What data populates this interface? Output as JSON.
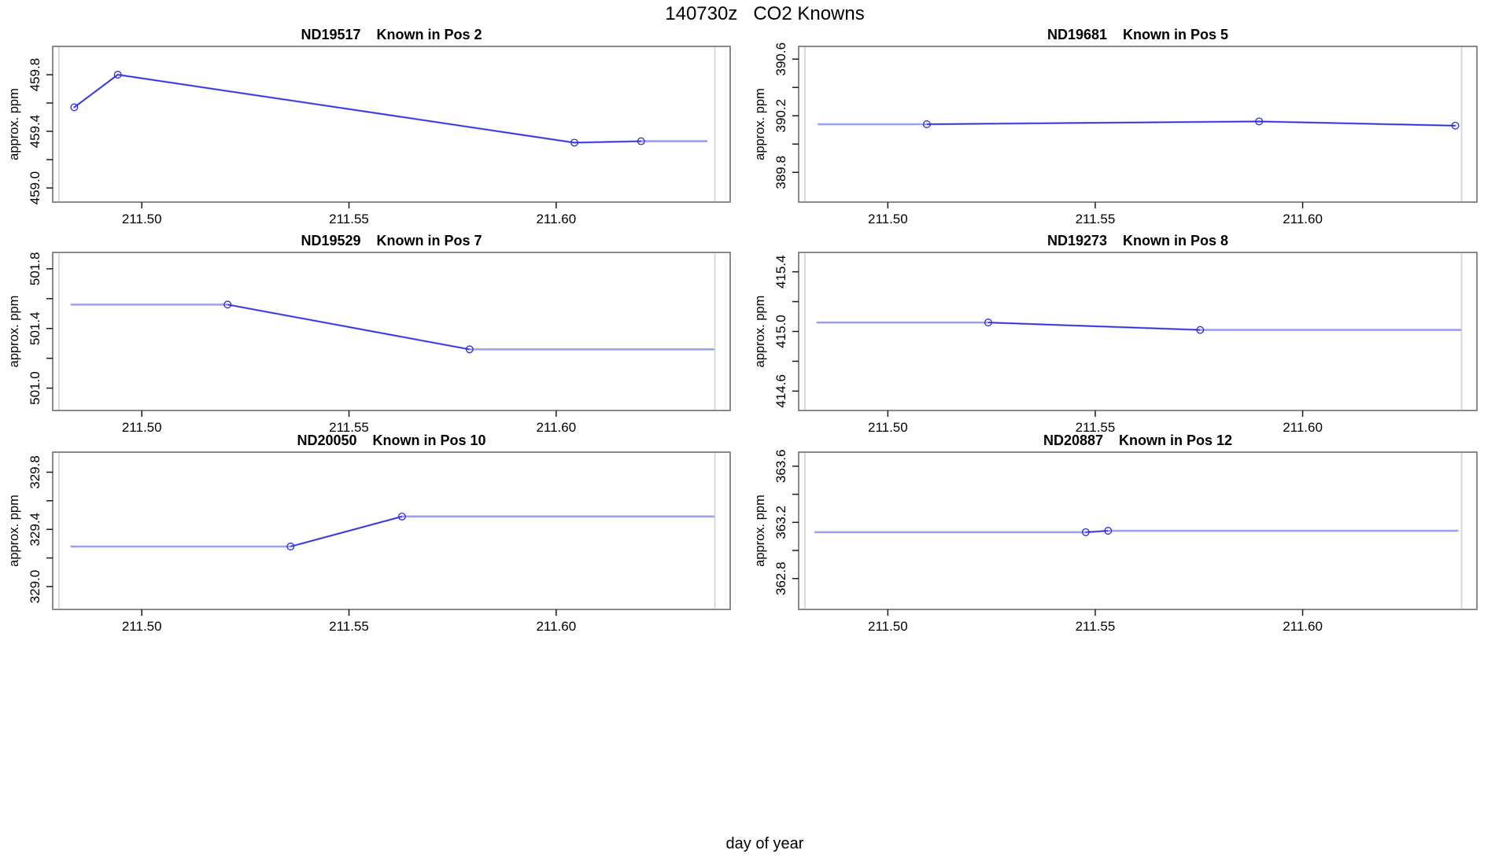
{
  "window": {
    "background": "#ffffff"
  },
  "colors": {
    "data_line": "#2b2bd9",
    "extrapolation_line": "#9aa0f2",
    "marker_line": "#d9d9d9",
    "box_border": "#6e6e6e",
    "tick": "#1a1a1a",
    "text": "#000000"
  },
  "chart_data": {
    "type": "line",
    "title": "140730z   CO2 Knowns",
    "xlabel": "day of year",
    "ylabel": "approx. ppm",
    "grid": false,
    "legend": "none",
    "xlim": [
      211.4785,
      211.642
    ],
    "x_ticks": [
      {
        "v": 211.5,
        "label": "211.50"
      },
      {
        "v": 211.55,
        "label": "211.55"
      },
      {
        "v": 211.6,
        "label": "211.60"
      }
    ],
    "marker_lines_x": [
      211.48,
      211.6383
    ],
    "panels": [
      {
        "title": "ND19517    Known in Pos 2",
        "id": "ND19517",
        "position_label": "Known in Pos 2",
        "ylim": [
          458.9,
          460.0
        ],
        "y_ticks": [
          {
            "v": 459.0,
            "label": "459.0"
          },
          {
            "v": 459.2,
            "label": ""
          },
          {
            "v": 459.4,
            "label": "459.4"
          },
          {
            "v": 459.6,
            "label": ""
          },
          {
            "v": 459.8,
            "label": "459.8"
          }
        ],
        "points": [
          {
            "x": 211.4837,
            "y": 459.57
          },
          {
            "x": 211.4942,
            "y": 459.8
          },
          {
            "x": 211.6044,
            "y": 459.32
          },
          {
            "x": 211.6205,
            "y": 459.33
          }
        ],
        "lead_x": null,
        "trail_x": 211.6363
      },
      {
        "title": "ND19681    Known in Pos 5",
        "id": "ND19681",
        "position_label": "Known in Pos 5",
        "ylim": [
          389.59,
          390.69
        ],
        "y_ticks": [
          {
            "v": 389.8,
            "label": "389.8"
          },
          {
            "v": 390.0,
            "label": ""
          },
          {
            "v": 390.2,
            "label": "390.2"
          },
          {
            "v": 390.4,
            "label": ""
          },
          {
            "v": 390.6,
            "label": "390.6"
          }
        ],
        "points": [
          {
            "x": 211.5094,
            "y": 390.14
          },
          {
            "x": 211.5895,
            "y": 390.16
          },
          {
            "x": 211.6368,
            "y": 390.13
          }
        ],
        "lead_x": 211.4833,
        "trail_x": null
      },
      {
        "title": "ND19529    Known in Pos 7",
        "id": "ND19529",
        "position_label": "Known in Pos 7",
        "ylim": [
          500.85,
          501.91
        ],
        "y_ticks": [
          {
            "v": 501.0,
            "label": "501.0"
          },
          {
            "v": 501.2,
            "label": ""
          },
          {
            "v": 501.4,
            "label": "501.4"
          },
          {
            "v": 501.6,
            "label": ""
          },
          {
            "v": 501.8,
            "label": "501.8"
          }
        ],
        "points": [
          {
            "x": 211.5207,
            "y": 501.56
          },
          {
            "x": 211.5791,
            "y": 501.26
          }
        ],
        "lead_x": 211.483,
        "trail_x": 211.638
      },
      {
        "title": "ND19273    Known in Pos 8",
        "id": "ND19273",
        "position_label": "Known in Pos 8",
        "ylim": [
          414.47,
          415.53
        ],
        "y_ticks": [
          {
            "v": 414.6,
            "label": "414.6"
          },
          {
            "v": 414.8,
            "label": ""
          },
          {
            "v": 415.0,
            "label": "415.0"
          },
          {
            "v": 415.2,
            "label": ""
          },
          {
            "v": 415.4,
            "label": "415.4"
          }
        ],
        "points": [
          {
            "x": 211.5242,
            "y": 415.06
          },
          {
            "x": 211.5753,
            "y": 415.01
          }
        ],
        "lead_x": 211.483,
        "trail_x": 211.638
      },
      {
        "title": "ND20050    Known in Pos 10",
        "id": "ND20050",
        "position_label": "Known in Pos 10",
        "ylim": [
          328.84,
          329.94
        ],
        "y_ticks": [
          {
            "v": 329.0,
            "label": "329.0"
          },
          {
            "v": 329.2,
            "label": ""
          },
          {
            "v": 329.4,
            "label": "329.4"
          },
          {
            "v": 329.6,
            "label": ""
          },
          {
            "v": 329.8,
            "label": "329.8"
          }
        ],
        "points": [
          {
            "x": 211.5359,
            "y": 329.28
          },
          {
            "x": 211.5628,
            "y": 329.49
          }
        ],
        "lead_x": 211.483,
        "trail_x": 211.638
      },
      {
        "title": "ND20887    Known in Pos 12",
        "id": "ND20887",
        "position_label": "Known in Pos 12",
        "ylim": [
          362.58,
          363.7
        ],
        "y_ticks": [
          {
            "v": 362.8,
            "label": "362.8"
          },
          {
            "v": 363.0,
            "label": ""
          },
          {
            "v": 363.2,
            "label": "363.2"
          },
          {
            "v": 363.4,
            "label": ""
          },
          {
            "v": 363.6,
            "label": "363.6"
          }
        ],
        "points": [
          {
            "x": 211.5477,
            "y": 363.13
          },
          {
            "x": 211.5531,
            "y": 363.14
          }
        ],
        "lead_x": 211.4825,
        "trail_x": 211.6373
      }
    ]
  }
}
